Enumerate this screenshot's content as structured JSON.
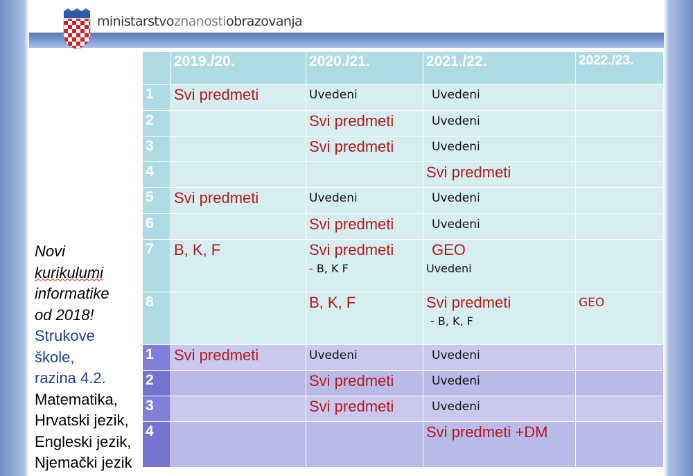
{
  "header": {
    "logo_bold1": "ministarstvo",
    "logo_light": "znanosti",
    "logo_bold2": "obrazovanja"
  },
  "side": {
    "line1": "Novi",
    "line2": "kurikulumi",
    "line3": "informatike",
    "line4": "od 2018!",
    "line5": "Strukove",
    "line6": "škole,",
    "line7": "razina 4.2.",
    "line8": "Matematika,",
    "line9": "Hrvatski jezik,",
    "line10": "Engleski jezik,",
    "line11": "Njemački jezik"
  },
  "table": {
    "headers": [
      "2019./20.",
      "2020./21.",
      "2021./22.",
      "2022./23."
    ],
    "rows": [
      {
        "num": "1",
        "c1": "Svi predmeti",
        "c2": "Uvedeni",
        "c3": "Uvedeni",
        "c4": ""
      },
      {
        "num": "2",
        "c1": "",
        "c2": "Svi predmeti",
        "c3": "Uvedeni",
        "c4": ""
      },
      {
        "num": "3",
        "c1": "",
        "c2": "Svi predmeti",
        "c3": "Uvedeni",
        "c4": ""
      },
      {
        "num": "4",
        "c1": "",
        "c2": "",
        "c3": "Svi predmeti",
        "c4": ""
      },
      {
        "num": "5",
        "c1": "Svi predmeti",
        "c2": "Uvedeni",
        "c3": "Uvedeni",
        "c4": ""
      },
      {
        "num": "6",
        "c1": "",
        "c2": "Svi predmeti",
        "c3": "Uvedeni",
        "c4": ""
      },
      {
        "num": "7",
        "c1": "B, K, F",
        "c2": "Svi predmeti",
        "c2_dash": "- ",
        "c2_sub": "B, K F",
        "c3": "GEO",
        "c3_sub": "Uvedeni",
        "c4": ""
      },
      {
        "num": "8",
        "c1": "",
        "c2": "B, K, F",
        "c3": "Svi predmeti",
        "c3_sub": "- B, K, F",
        "c4": "GEO"
      },
      {
        "num": "1",
        "c1": "Svi predmeti",
        "c2": "Uvedeni",
        "c3": "Uvedeni",
        "c4": ""
      },
      {
        "num": "2",
        "c1": "",
        "c2": "Svi predmeti",
        "c3": "Uvedeni",
        "c4": ""
      },
      {
        "num": "3",
        "c1": "",
        "c2": "Svi predmeti",
        "c3": "Uvedeni",
        "c4": ""
      },
      {
        "num": "4",
        "c1": "",
        "c2": "",
        "c3": "Svi predmeti +DM",
        "c4": ""
      }
    ]
  },
  "colors": {
    "teal_header": "#afdce3",
    "teal_row": "#d7eef1",
    "violet_num": "#8080d8",
    "violet_row": "#c9c9f0",
    "red_text": "#b3191c"
  }
}
